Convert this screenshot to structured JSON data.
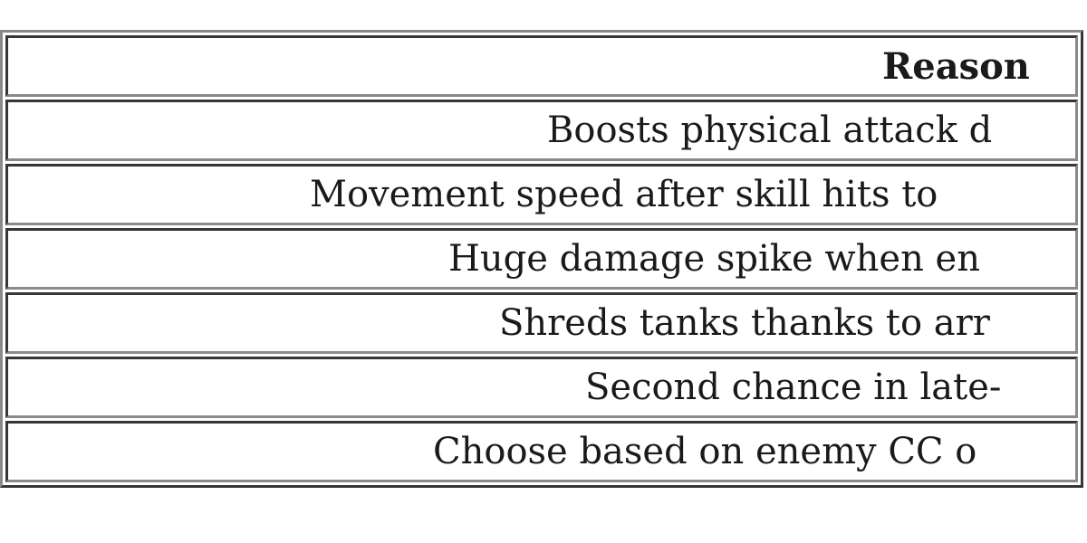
{
  "table": {
    "header": "Reason",
    "rows": [
      "Boosts physical attack d",
      "Movement speed after skill hits to",
      "Huge damage spike when en",
      "Shreds tanks thanks to arr",
      "Second chance in late-",
      "Choose based on enemy CC o"
    ]
  }
}
